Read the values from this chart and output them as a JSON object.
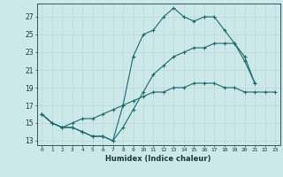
{
  "title": "",
  "xlabel": "Humidex (Indice chaleur)",
  "background_color": "#cce8e8",
  "grid_color": "#b8d8d8",
  "line_color": "#1a6b6b",
  "xlim": [
    -0.5,
    23.5
  ],
  "ylim": [
    12.5,
    28.5
  ],
  "yticks": [
    13,
    15,
    17,
    19,
    21,
    23,
    25,
    27
  ],
  "xticks": [
    0,
    1,
    2,
    3,
    4,
    5,
    6,
    7,
    8,
    9,
    10,
    11,
    12,
    13,
    14,
    15,
    16,
    17,
    18,
    19,
    20,
    21,
    22,
    23
  ],
  "series": [
    [
      16.0,
      15.0,
      14.5,
      14.5,
      14.0,
      13.5,
      13.5,
      13.0,
      17.0,
      22.5,
      25.0,
      25.5,
      27.0,
      28.0,
      27.0,
      26.5,
      27.0,
      27.0,
      25.5,
      24.0,
      22.0,
      19.5,
      null,
      null
    ],
    [
      16.0,
      15.0,
      14.5,
      14.5,
      14.0,
      13.5,
      13.5,
      13.0,
      14.5,
      16.5,
      18.5,
      20.5,
      21.5,
      22.5,
      23.0,
      23.5,
      23.5,
      24.0,
      24.0,
      24.0,
      22.5,
      19.5,
      null,
      null
    ],
    [
      16.0,
      15.0,
      14.5,
      15.0,
      15.5,
      15.5,
      16.0,
      16.5,
      17.0,
      17.5,
      18.0,
      18.5,
      18.5,
      19.0,
      19.0,
      19.5,
      19.5,
      19.5,
      19.0,
      19.0,
      18.5,
      18.5,
      18.5,
      18.5
    ]
  ]
}
